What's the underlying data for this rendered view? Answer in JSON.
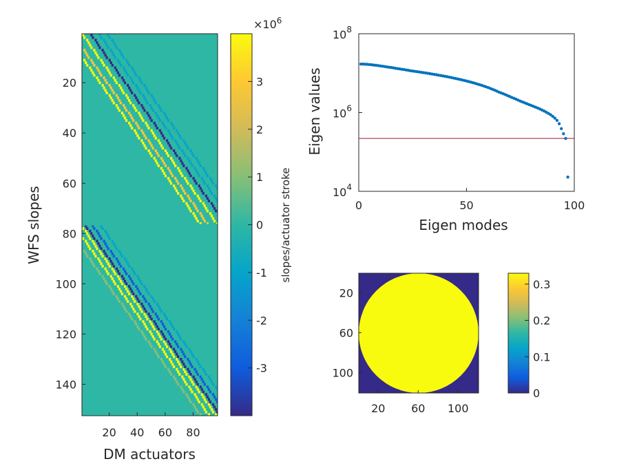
{
  "colors": {
    "parula": [
      "#352a87",
      "#0f5cdd",
      "#1481d6",
      "#06a4ca",
      "#2eb7a4",
      "#87bf77",
      "#d1bb59",
      "#fec832",
      "#f9fb0e"
    ],
    "curve": "#0072bd",
    "threshold": "#a2142f",
    "axis": "#262626"
  },
  "chart_data": [
    {
      "type": "heatmap",
      "title": "",
      "xlabel": "DM actuators",
      "ylabel": "WFS slopes",
      "x_range": [
        1,
        97
      ],
      "y_range": [
        1,
        152
      ],
      "x_ticks": [
        "20",
        "40",
        "60",
        "80"
      ],
      "y_ticks": [
        "20",
        "40",
        "60",
        "80",
        "100",
        "120",
        "140"
      ],
      "colorbar": {
        "label": "slopes/actuator stroke",
        "exponent": "×10",
        "exponent_power": "6",
        "range": [
          -4,
          4
        ],
        "ticks": [
          "-3",
          "-2",
          "-1",
          "0",
          "1",
          "2",
          "3"
        ]
      },
      "structure": "two stacked banded interaction blocks (x-slopes rows 1-76, y-slopes rows 77-152) of diagonal positive/negative stripes"
    },
    {
      "type": "scatter",
      "title": "",
      "xlabel": "Eigen modes",
      "ylabel": "Eigen values",
      "yscale": "log",
      "xlim": [
        0,
        100
      ],
      "ylim": [
        10000,
        100000000
      ],
      "x_ticks": [
        "0",
        "50",
        "100"
      ],
      "y_ticks": [
        {
          "base": "10",
          "exp": "8"
        },
        {
          "base": "10",
          "exp": "6"
        },
        {
          "base": "10",
          "exp": "4"
        }
      ],
      "threshold": 220000,
      "series": [
        {
          "x": [
            1,
            2,
            3,
            4,
            5,
            6,
            7,
            8,
            9,
            10,
            11,
            12,
            13,
            14,
            15,
            16,
            17,
            18,
            19,
            20,
            21,
            22,
            23,
            24,
            25,
            26,
            27,
            28,
            29,
            30,
            31,
            32,
            33,
            34,
            35,
            36,
            37,
            38,
            39,
            40,
            41,
            42,
            43,
            44,
            45,
            46,
            47,
            48,
            49,
            50,
            51,
            52,
            53,
            54,
            55,
            56,
            57,
            58,
            59,
            60,
            61,
            62,
            63,
            64,
            65,
            66,
            67,
            68,
            69,
            70,
            71,
            72,
            73,
            74,
            75,
            76,
            77,
            78,
            79,
            80,
            81,
            82,
            83,
            84,
            85,
            86,
            87,
            88,
            89,
            90,
            91,
            92,
            93,
            94,
            95,
            96,
            97
          ],
          "y": [
            17000000,
            17000000,
            16800000,
            16700000,
            16500000,
            16300000,
            16000000,
            15800000,
            15500000,
            15200000,
            15000000,
            14700000,
            14400000,
            14100000,
            13900000,
            13600000,
            13300000,
            13000000,
            12800000,
            12500000,
            12300000,
            12000000,
            11800000,
            11500000,
            11300000,
            11100000,
            10900000,
            10700000,
            10500000,
            10300000,
            10100000,
            9900000,
            9700000,
            9500000,
            9300000,
            9100000,
            8900000,
            8700000,
            8500000,
            8300000,
            8100000,
            7900000,
            7700000,
            7500000,
            7300000,
            7100000,
            6900000,
            6700000,
            6500000,
            6300000,
            6100000,
            5900000,
            5700000,
            5500000,
            5300000,
            5100000,
            4900000,
            4700000,
            4500000,
            4300000,
            4100000,
            3900000,
            3700000,
            3500000,
            3300000,
            3150000,
            3000000,
            2850000,
            2700000,
            2550000,
            2420000,
            2300000,
            2180000,
            2060000,
            1950000,
            1850000,
            1760000,
            1670000,
            1590000,
            1510000,
            1440000,
            1370000,
            1300000,
            1230000,
            1160000,
            1090000,
            1020000,
            950000,
            880000,
            800000,
            720000,
            630000,
            520000,
            390000,
            290000,
            220000,
            23000
          ]
        }
      ]
    },
    {
      "type": "heatmap",
      "title": "",
      "xlabel": "",
      "ylabel": "",
      "x_range": [
        1,
        120
      ],
      "y_range": [
        1,
        120
      ],
      "x_ticks": [
        "20",
        "60",
        "100"
      ],
      "y_ticks": [
        "20",
        "60",
        "100"
      ],
      "colorbar": {
        "range": [
          0,
          0.33
        ],
        "ticks": [
          "0",
          "0.1",
          "0.2",
          "0.3"
        ]
      },
      "inside_value": 0.31,
      "outside_value": 0
    }
  ]
}
